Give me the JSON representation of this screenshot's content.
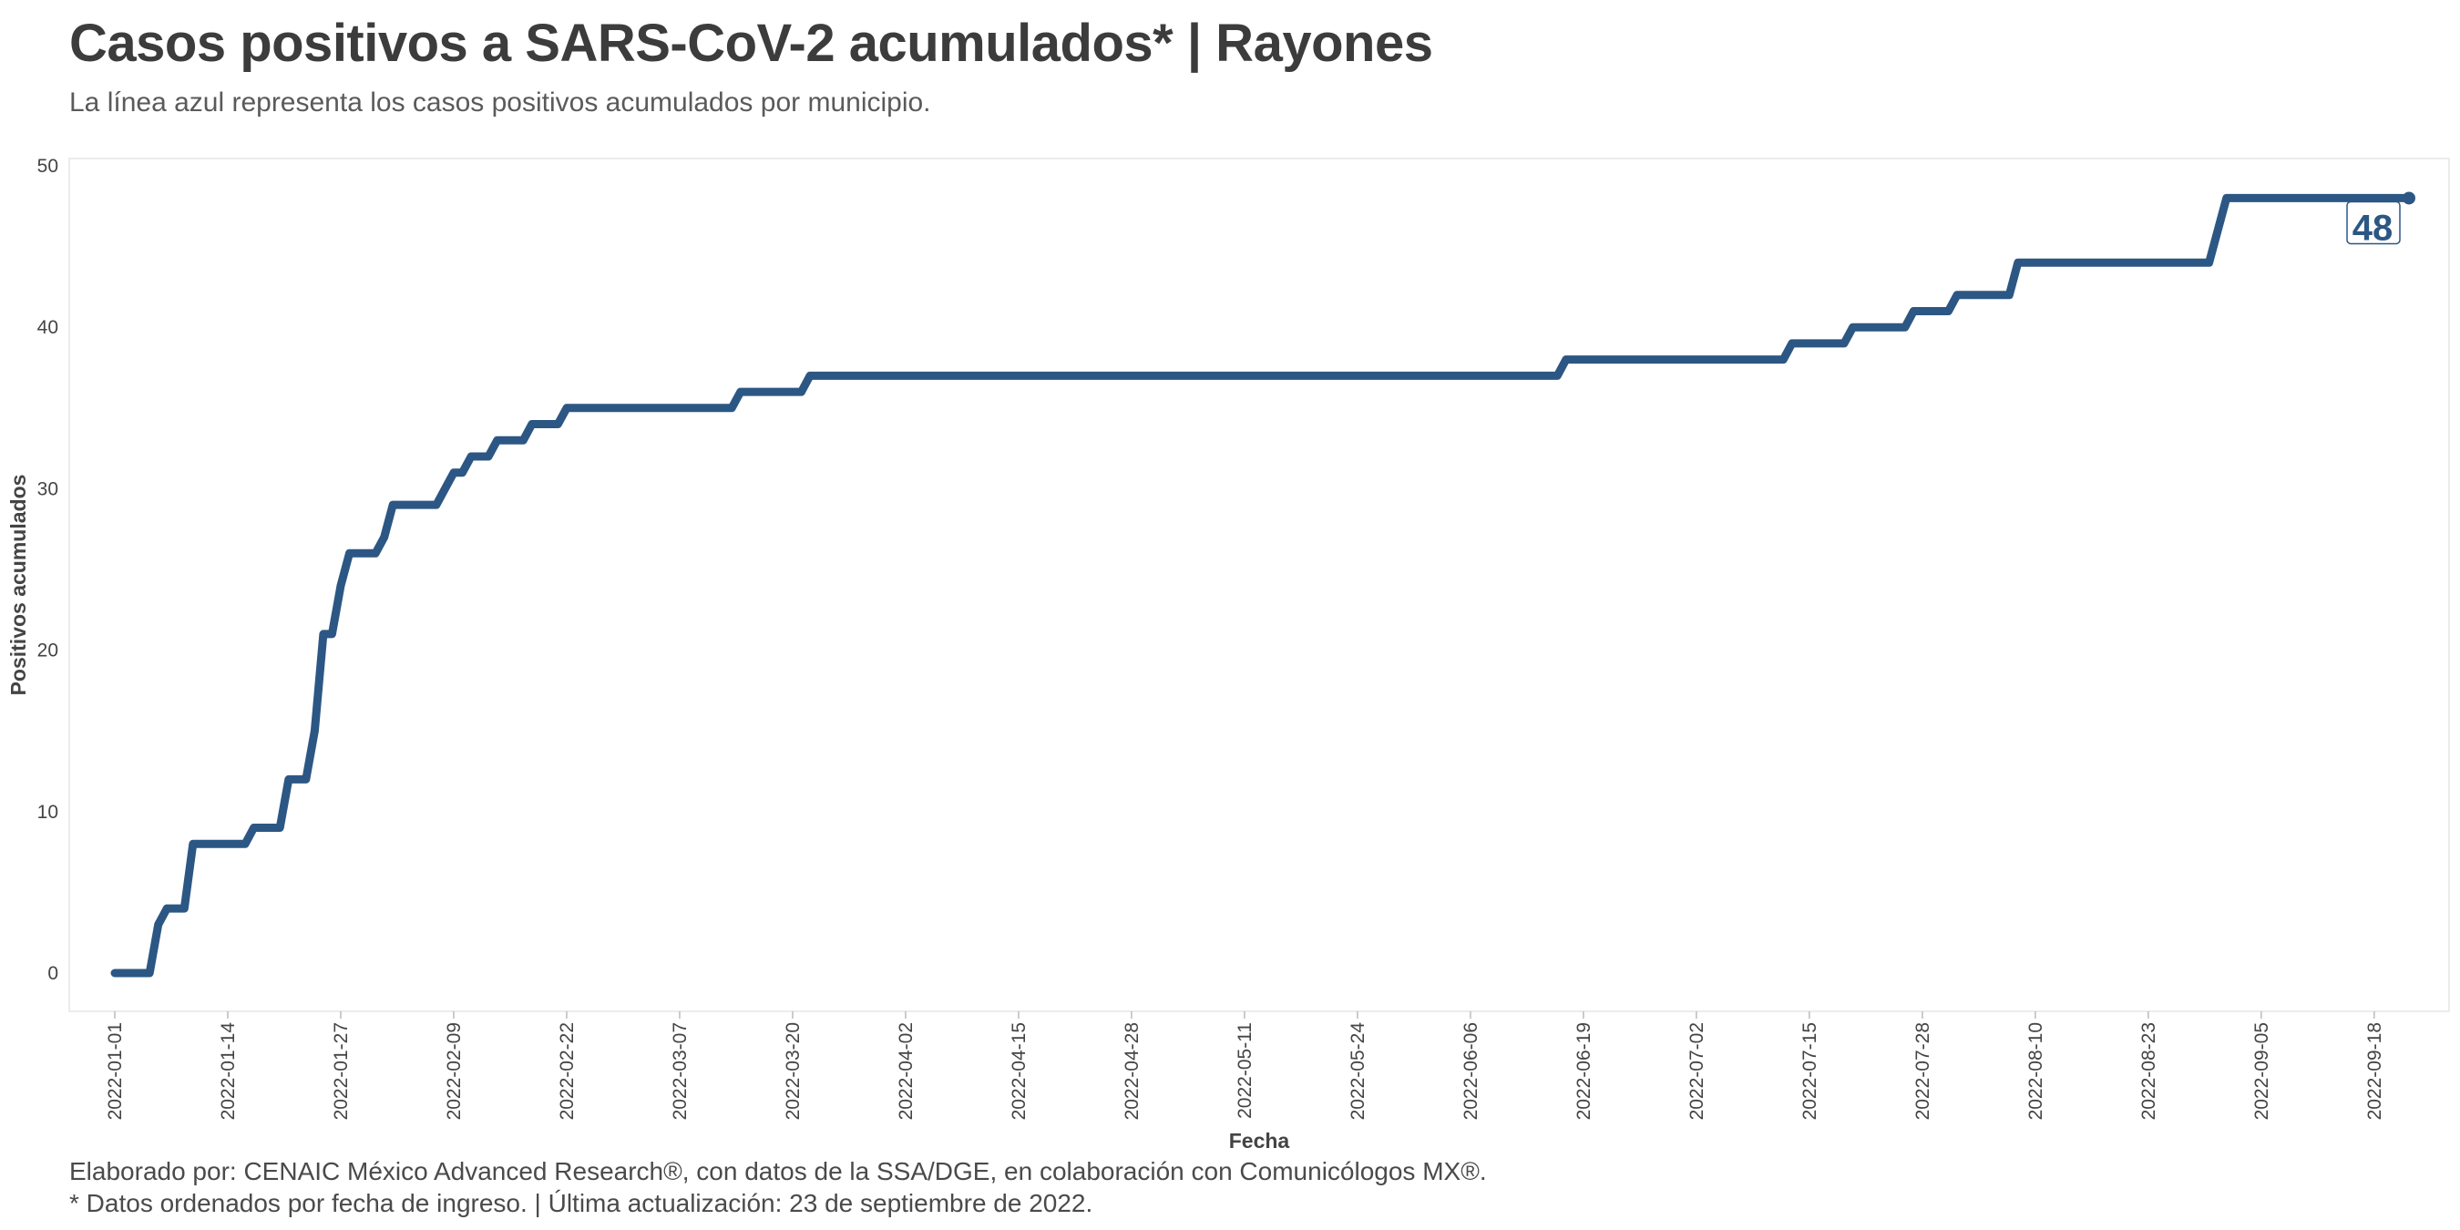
{
  "title": "Casos positivos a SARS-CoV-2 acumulados* | Rayones",
  "subtitle": "La línea azul representa los casos positivos acumulados por municipio.",
  "caption_line1": "Elaborado por: CENAIC México Advanced Research®, con datos de la SSA/DGE, en colaboración con Comunicólogos MX®.",
  "caption_line2": "* Datos ordenados por fecha de ingreso. | Última actualización: 23 de septiembre de 2022.",
  "colors": {
    "line": "#2c5784",
    "panel_border": "#e6e6e6"
  },
  "chart_data": {
    "type": "line",
    "xlabel": "Fecha",
    "ylabel": "Positivos acumulados",
    "xlim": [
      "2022-01-01",
      "2022-09-22"
    ],
    "ylim": [
      0,
      50
    ],
    "y_ticks": [
      0,
      10,
      20,
      30,
      40,
      50
    ],
    "x_ticks": [
      "2022-01-01",
      "2022-01-14",
      "2022-01-27",
      "2022-02-09",
      "2022-02-22",
      "2022-03-07",
      "2022-03-20",
      "2022-04-02",
      "2022-04-15",
      "2022-04-28",
      "2022-05-11",
      "2022-05-24",
      "2022-06-06",
      "2022-06-19",
      "2022-07-02",
      "2022-07-15",
      "2022-07-28",
      "2022-08-10",
      "2022-08-23",
      "2022-09-05",
      "2022-09-18"
    ],
    "grid": false,
    "end_label": "48",
    "series": [
      {
        "values": [
          [
            "2022-01-01",
            0
          ],
          [
            "2022-01-05",
            0
          ],
          [
            "2022-01-06",
            3
          ],
          [
            "2022-01-07",
            4
          ],
          [
            "2022-01-09",
            4
          ],
          [
            "2022-01-10",
            8
          ],
          [
            "2022-01-16",
            8
          ],
          [
            "2022-01-17",
            9
          ],
          [
            "2022-01-20",
            9
          ],
          [
            "2022-01-21",
            12
          ],
          [
            "2022-01-23",
            12
          ],
          [
            "2022-01-24",
            15
          ],
          [
            "2022-01-25",
            21
          ],
          [
            "2022-01-26",
            21
          ],
          [
            "2022-01-27",
            24
          ],
          [
            "2022-01-28",
            26
          ],
          [
            "2022-01-31",
            26
          ],
          [
            "2022-02-01",
            27
          ],
          [
            "2022-02-02",
            29
          ],
          [
            "2022-02-07",
            29
          ],
          [
            "2022-02-09",
            31
          ],
          [
            "2022-02-10",
            31
          ],
          [
            "2022-02-11",
            32
          ],
          [
            "2022-02-13",
            32
          ],
          [
            "2022-02-14",
            33
          ],
          [
            "2022-02-17",
            33
          ],
          [
            "2022-02-18",
            34
          ],
          [
            "2022-02-21",
            34
          ],
          [
            "2022-02-22",
            35
          ],
          [
            "2022-03-13",
            35
          ],
          [
            "2022-03-14",
            36
          ],
          [
            "2022-03-21",
            36
          ],
          [
            "2022-03-22",
            37
          ],
          [
            "2022-06-16",
            37
          ],
          [
            "2022-06-17",
            38
          ],
          [
            "2022-07-12",
            38
          ],
          [
            "2022-07-13",
            39
          ],
          [
            "2022-07-19",
            39
          ],
          [
            "2022-07-20",
            40
          ],
          [
            "2022-07-26",
            40
          ],
          [
            "2022-07-27",
            41
          ],
          [
            "2022-07-31",
            41
          ],
          [
            "2022-08-01",
            42
          ],
          [
            "2022-08-07",
            42
          ],
          [
            "2022-08-08",
            44
          ],
          [
            "2022-08-30",
            44
          ],
          [
            "2022-09-01",
            48
          ],
          [
            "2022-09-22",
            48
          ]
        ]
      }
    ]
  }
}
